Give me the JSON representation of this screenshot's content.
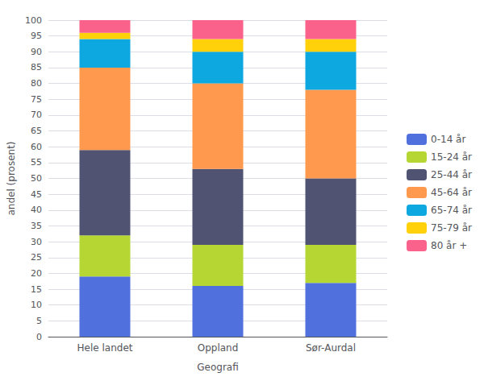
{
  "chart_data": {
    "type": "bar",
    "stacked": true,
    "categories": [
      "Hele landet",
      "Oppland",
      "Sør-Aurdal"
    ],
    "series": [
      {
        "name": "0-14 år",
        "values": [
          19,
          16,
          17
        ]
      },
      {
        "name": "15-24 år",
        "values": [
          13,
          13,
          12
        ]
      },
      {
        "name": "25-44 år",
        "values": [
          27,
          24,
          21
        ]
      },
      {
        "name": "45-64 år",
        "values": [
          26,
          27,
          28
        ]
      },
      {
        "name": "65-74 år",
        "values": [
          9,
          10,
          12
        ]
      },
      {
        "name": "75-79 år",
        "values": [
          2,
          4,
          4
        ]
      },
      {
        "name": "80 år +",
        "values": [
          4,
          6,
          6
        ]
      }
    ],
    "xlabel": "Geografi",
    "ylabel": "andel (prosent)",
    "ylim": [
      0,
      100
    ],
    "yticks": [
      0,
      5,
      10,
      15,
      20,
      25,
      30,
      35,
      40,
      45,
      50,
      55,
      60,
      65,
      70,
      75,
      80,
      85,
      90,
      95,
      100
    ],
    "grid": true,
    "legend": "right"
  }
}
